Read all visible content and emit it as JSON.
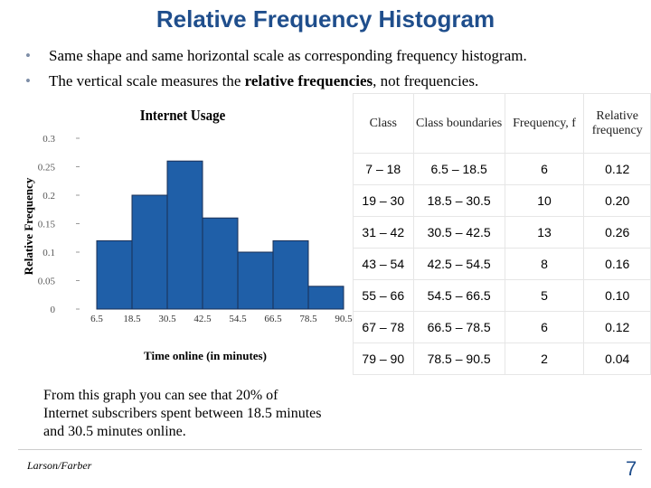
{
  "title": "Relative Frequency Histogram",
  "bullets": [
    "Same shape and same horizontal scale as corresponding frequency histogram.",
    [
      "The vertical scale measures the ",
      "relative frequencies",
      ", not frequencies."
    ]
  ],
  "chart_data": {
    "type": "histogram",
    "title": "Internet Usage",
    "xlabel": "Time online (in minutes)",
    "ylabel": "Relative Frequency",
    "bins": [
      6.5,
      18.5,
      30.5,
      42.5,
      54.5,
      66.5,
      78.5,
      90.5
    ],
    "values": [
      0.12,
      0.2,
      0.26,
      0.16,
      0.1,
      0.12,
      0.04
    ],
    "color": "#1f5fa8",
    "ylim": [
      0,
      0.3
    ],
    "yticks": [
      0,
      0.05,
      0.1,
      0.15,
      0.2,
      0.25,
      0.3
    ]
  },
  "table": {
    "header": [
      "Class",
      "Class boundaries",
      "Frequency, f",
      "Relative frequency"
    ],
    "rows": [
      [
        "7 – 18",
        "6.5 – 18.5",
        "6",
        "0.12"
      ],
      [
        "19 – 30",
        "18.5 – 30.5",
        "10",
        "0.20"
      ],
      [
        "31 – 42",
        "30.5 – 42.5",
        "13",
        "0.26"
      ],
      [
        "43 – 54",
        "42.5 – 54.5",
        "8",
        "0.16"
      ],
      [
        "55 – 66",
        "54.5 – 66.5",
        "5",
        "0.10"
      ],
      [
        "67 – 78",
        "66.5 – 78.5",
        "6",
        "0.12"
      ],
      [
        "79 – 90",
        "78.5 – 90.5",
        "2",
        "0.04"
      ]
    ]
  },
  "note": "From this graph you can see that 20% of Internet subscribers spent between 18.5 minutes and 30.5 minutes online.",
  "footer": "Larson/Farber",
  "page_number": "7"
}
